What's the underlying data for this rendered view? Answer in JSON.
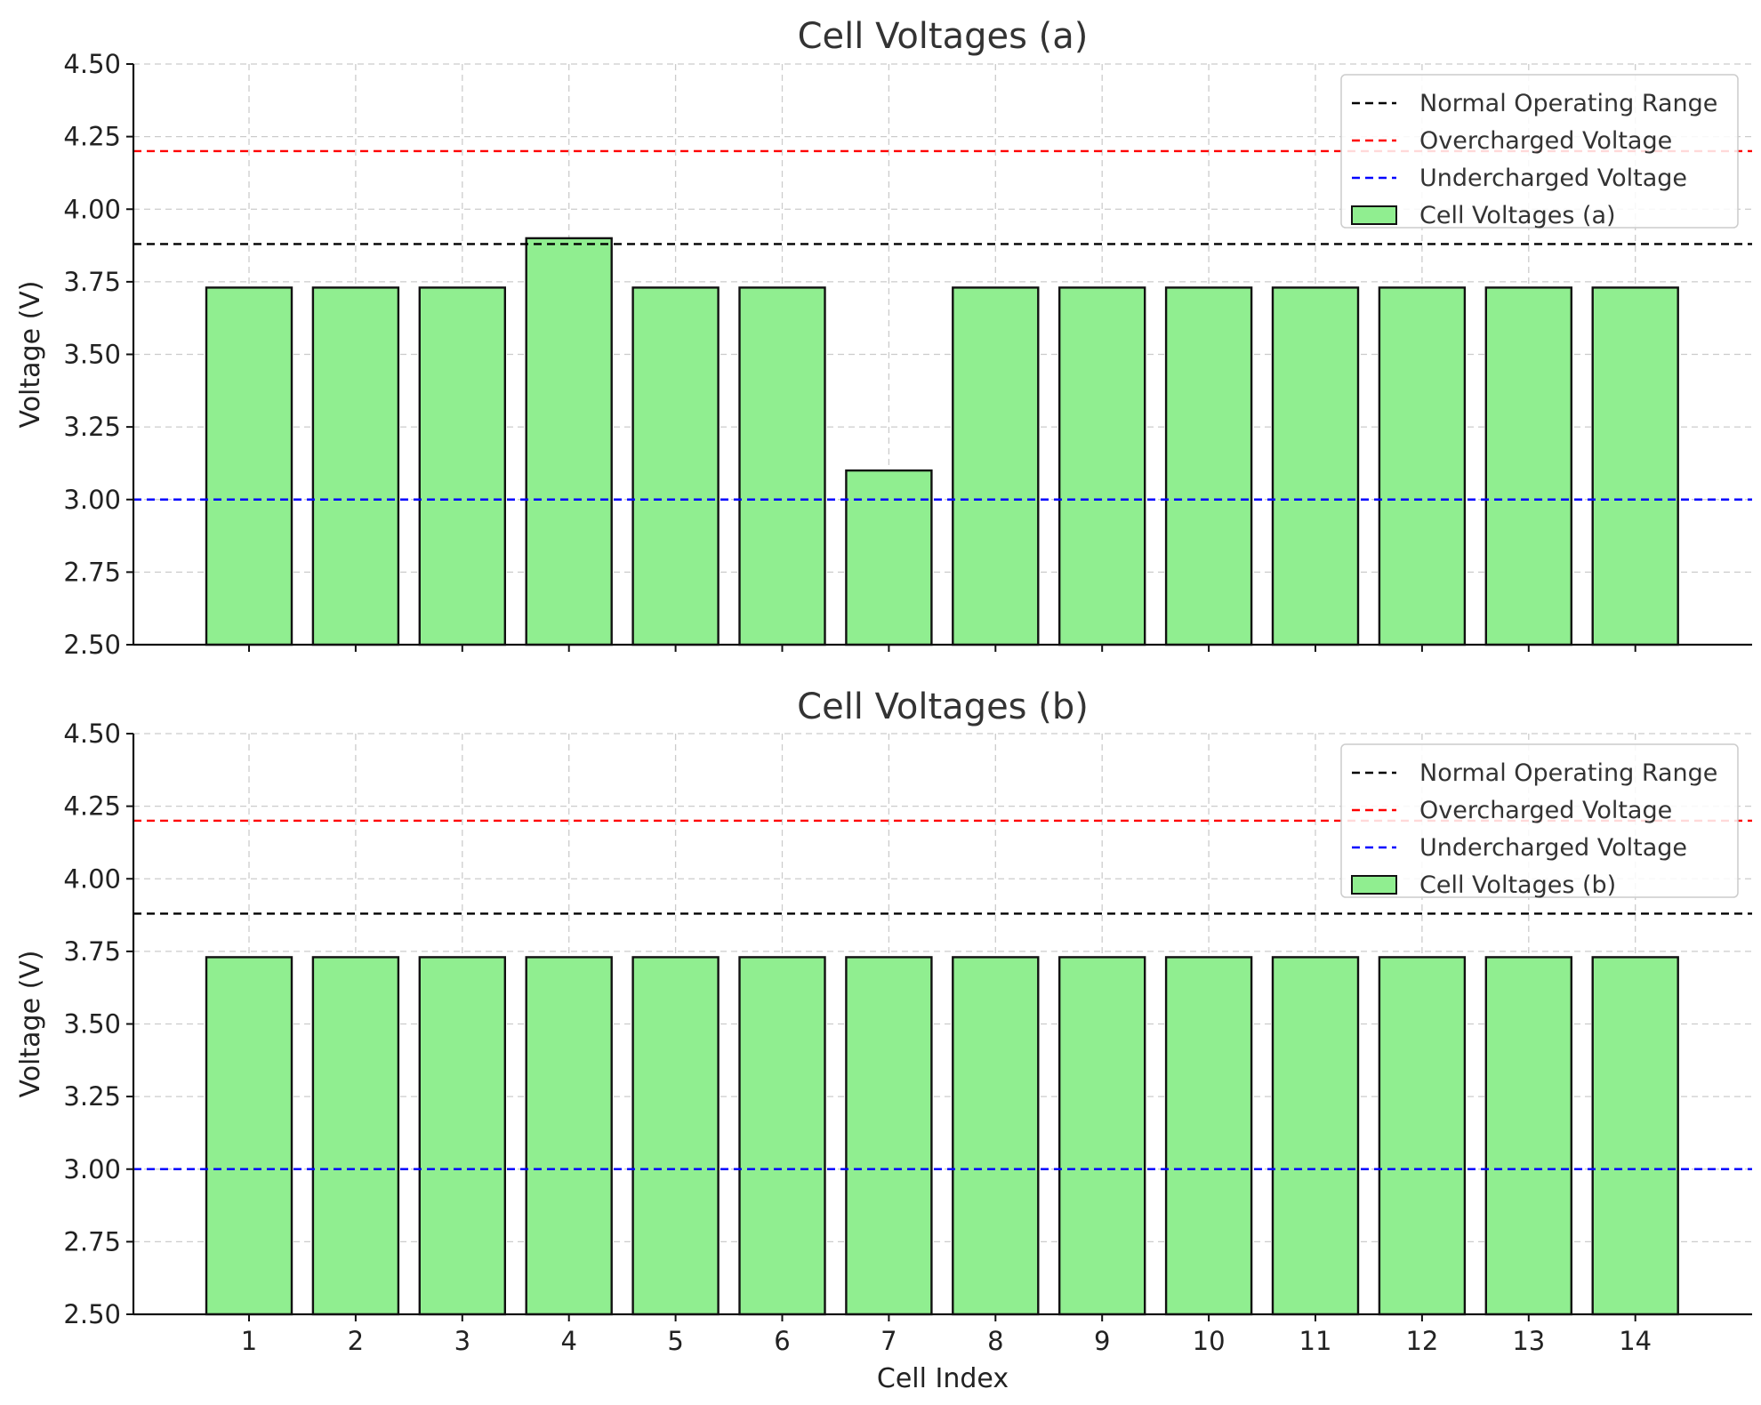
{
  "chart_data": [
    {
      "type": "bar",
      "title": "Cell Voltages (a)",
      "xlabel": "",
      "ylabel": "Voltage (V)",
      "categories": [
        "1",
        "2",
        "3",
        "4",
        "5",
        "6",
        "7",
        "8",
        "9",
        "10",
        "11",
        "12",
        "13",
        "14"
      ],
      "show_xticklabels": false,
      "series": [
        {
          "name": "Cell Voltages (a)",
          "values": [
            3.73,
            3.73,
            3.73,
            3.9,
            3.73,
            3.73,
            3.1,
            3.73,
            3.73,
            3.73,
            3.73,
            3.73,
            3.73,
            3.73
          ]
        }
      ],
      "reference_lines": [
        {
          "name": "Normal Operating Range",
          "y": 3.88,
          "color": "#000000",
          "style": "dashed"
        },
        {
          "name": "Overcharged Voltage",
          "y": 4.2,
          "color": "#ff0000",
          "style": "dashed"
        },
        {
          "name": "Undercharged Voltage",
          "y": 3.0,
          "color": "#0000ff",
          "style": "dashed"
        }
      ],
      "ylim": [
        2.5,
        4.5
      ],
      "yticks": [
        "2.50",
        "2.75",
        "3.00",
        "3.25",
        "3.50",
        "3.75",
        "4.00",
        "4.25",
        "4.50"
      ],
      "bar_color": "#90ee90",
      "grid": true,
      "legend_position": "top-right"
    },
    {
      "type": "bar",
      "title": "Cell Voltages (b)",
      "xlabel": "Cell Index",
      "ylabel": "Voltage (V)",
      "categories": [
        "1",
        "2",
        "3",
        "4",
        "5",
        "6",
        "7",
        "8",
        "9",
        "10",
        "11",
        "12",
        "13",
        "14"
      ],
      "show_xticklabels": true,
      "series": [
        {
          "name": "Cell Voltages (b)",
          "values": [
            3.73,
            3.73,
            3.73,
            3.73,
            3.73,
            3.73,
            3.73,
            3.73,
            3.73,
            3.73,
            3.73,
            3.73,
            3.73,
            3.73
          ]
        }
      ],
      "reference_lines": [
        {
          "name": "Normal Operating Range",
          "y": 3.88,
          "color": "#000000",
          "style": "dashed"
        },
        {
          "name": "Overcharged Voltage",
          "y": 4.2,
          "color": "#ff0000",
          "style": "dashed"
        },
        {
          "name": "Undercharged Voltage",
          "y": 3.0,
          "color": "#0000ff",
          "style": "dashed"
        }
      ],
      "ylim": [
        2.5,
        4.5
      ],
      "yticks": [
        "2.50",
        "2.75",
        "3.00",
        "3.25",
        "3.50",
        "3.75",
        "4.00",
        "4.25",
        "4.50"
      ],
      "bar_color": "#90ee90",
      "grid": true,
      "legend_position": "top-right"
    }
  ]
}
